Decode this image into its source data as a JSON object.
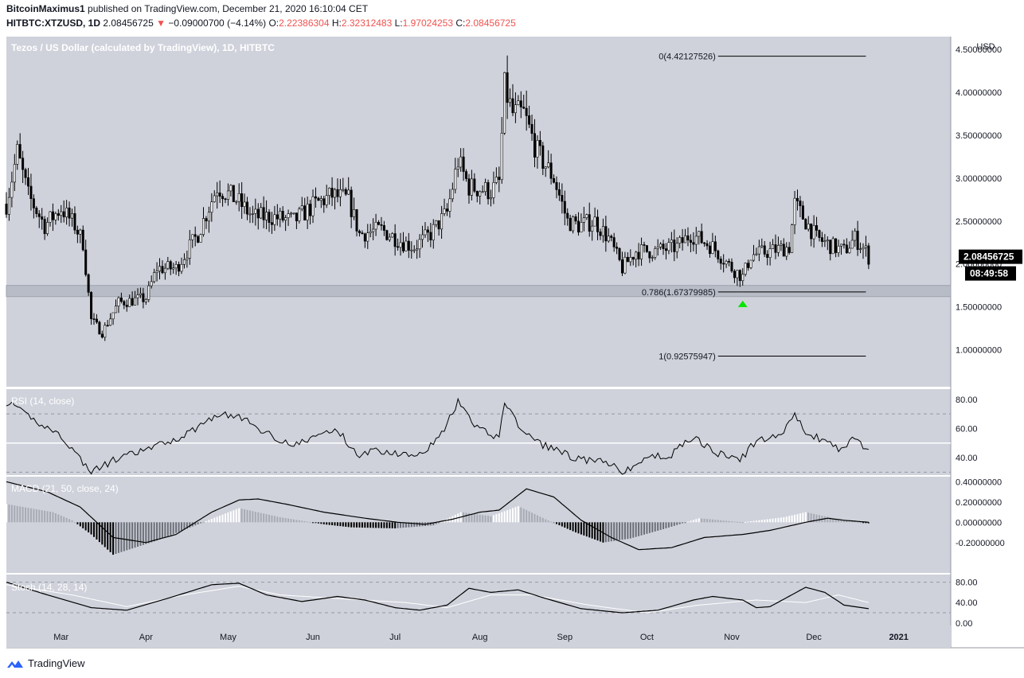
{
  "header": {
    "author": "BitcoinMaximus1",
    "published": "published on TradingView.com, December 21, 2020 16:10:04 CET",
    "symbol": "HITBTC:XTZUSD, 1D",
    "last": "2.08456725",
    "arrow": "▼",
    "change": "−0.09000700 (−4.14%)",
    "o_label": "O:",
    "o": "2.22386304",
    "h_label": "H:",
    "h": "2.32312483",
    "l_label": "L:",
    "l": "1.97024253",
    "c_label": "C:",
    "c": "2.08456725"
  },
  "footer": {
    "brand": "TradingView"
  },
  "colors": {
    "bg": "#cfd2db",
    "accent": "#ef5350",
    "green": "#00e600",
    "gold": "#f0b90b"
  },
  "chart_data": [
    {
      "type": "candlestick",
      "title": "Tezos / US Dollar (calculated by TradingView), 1D, HITBTC",
      "ylabel": "USD",
      "ylim": [
        0.56,
        4.65
      ],
      "yticks": [
        "1.00000000",
        "1.50000000",
        "2.00000000",
        "2.50000000",
        "3.00000000",
        "3.50000000",
        "4.00000000",
        "4.50000000"
      ],
      "xlabels": [
        "Mar",
        "Apr",
        "May",
        "Jun",
        "Jul",
        "Aug",
        "Sep",
        "Oct",
        "Nov",
        "Dec",
        "2021"
      ],
      "xlabel_dates": [
        "2020-03-01",
        "2020-04-01",
        "2020-05-01",
        "2020-06-01",
        "2020-07-01",
        "2020-08-01",
        "2020-09-01",
        "2020-10-01",
        "2020-11-01",
        "2020-12-01",
        "2021-01-01"
      ],
      "xlim": [
        "2020-02-10",
        "2021-01-20"
      ],
      "price_label": "2.08456725",
      "countdown": "08:49:58",
      "anchors": [
        [
          "2020-02-10",
          2.7
        ],
        [
          "2020-02-14",
          3.3
        ],
        [
          "2020-02-18",
          2.8
        ],
        [
          "2020-02-24",
          2.45
        ],
        [
          "2020-03-01",
          2.65
        ],
        [
          "2020-03-06",
          2.45
        ],
        [
          "2020-03-09",
          2.25
        ],
        [
          "2020-03-12",
          1.35
        ],
        [
          "2020-03-16",
          1.2
        ],
        [
          "2020-03-22",
          1.55
        ],
        [
          "2020-04-01",
          1.6
        ],
        [
          "2020-04-05",
          1.95
        ],
        [
          "2020-04-12",
          1.95
        ],
        [
          "2020-04-20",
          2.35
        ],
        [
          "2020-04-27",
          2.9
        ],
        [
          "2020-05-04",
          2.75
        ],
        [
          "2020-05-10",
          2.55
        ],
        [
          "2020-05-17",
          2.55
        ],
        [
          "2020-05-25",
          2.5
        ],
        [
          "2020-06-02",
          2.7
        ],
        [
          "2020-06-08",
          2.8
        ],
        [
          "2020-06-14",
          2.75
        ],
        [
          "2020-06-18",
          2.35
        ],
        [
          "2020-06-26",
          2.4
        ],
        [
          "2020-07-04",
          2.25
        ],
        [
          "2020-07-08",
          2.2
        ],
        [
          "2020-07-14",
          2.35
        ],
        [
          "2020-07-20",
          2.6
        ],
        [
          "2020-07-24",
          3.2
        ],
        [
          "2020-07-28",
          2.9
        ],
        [
          "2020-08-05",
          2.85
        ],
        [
          "2020-08-08",
          2.95
        ],
        [
          "2020-08-10",
          4.05
        ],
        [
          "2020-08-13",
          3.75
        ],
        [
          "2020-08-17",
          3.75
        ],
        [
          "2020-08-22",
          3.3
        ],
        [
          "2020-08-28",
          3.0
        ],
        [
          "2020-09-02",
          2.5
        ],
        [
          "2020-09-06",
          2.45
        ],
        [
          "2020-09-12",
          2.5
        ],
        [
          "2020-09-17",
          2.3
        ],
        [
          "2020-09-22",
          1.95
        ],
        [
          "2020-09-27",
          2.15
        ],
        [
          "2020-10-04",
          2.15
        ],
        [
          "2020-10-12",
          2.2
        ],
        [
          "2020-10-17",
          2.35
        ],
        [
          "2020-10-25",
          2.2
        ],
        [
          "2020-11-01",
          1.95
        ],
        [
          "2020-11-05",
          1.85
        ],
        [
          "2020-11-08",
          2.1
        ],
        [
          "2020-11-15",
          2.15
        ],
        [
          "2020-11-22",
          2.2
        ],
        [
          "2020-11-24",
          2.7
        ],
        [
          "2020-11-27",
          2.55
        ],
        [
          "2020-12-02",
          2.3
        ],
        [
          "2020-12-08",
          2.2
        ],
        [
          "2020-12-12",
          2.15
        ],
        [
          "2020-12-16",
          2.3
        ],
        [
          "2020-12-20",
          2.15
        ],
        [
          "2020-12-21",
          2.08
        ]
      ],
      "fib_levels": [
        {
          "label": "0(4.42127526)",
          "value": 4.42127526
        },
        {
          "label": "0.786(1.67379985)",
          "value": 1.67379985
        },
        {
          "label": "1(0.92575947)",
          "value": 0.92575947
        }
      ],
      "fib_start": "2020-10-27",
      "fib_end": "2020-12-20",
      "support_zone": [
        1.62,
        1.75
      ],
      "marker": {
        "date": "2020-11-05",
        "value": 1.6,
        "shape": "triangle-up",
        "color": "#00e600"
      }
    },
    {
      "type": "line",
      "title": "RSI (14, close)",
      "ylim": [
        28,
        87
      ],
      "yticks": [
        "80.00",
        "60.00",
        "40.00"
      ],
      "levels": [
        70,
        50,
        30
      ],
      "anchors": [
        [
          "2020-02-10",
          78
        ],
        [
          "2020-02-20",
          66
        ],
        [
          "2020-03-01",
          55
        ],
        [
          "2020-03-12",
          30
        ],
        [
          "2020-03-20",
          38
        ],
        [
          "2020-04-05",
          48
        ],
        [
          "2020-04-15",
          55
        ],
        [
          "2020-04-27",
          70
        ],
        [
          "2020-05-05",
          68
        ],
        [
          "2020-05-15",
          57
        ],
        [
          "2020-05-25",
          48
        ],
        [
          "2020-06-05",
          57
        ],
        [
          "2020-06-10",
          59
        ],
        [
          "2020-06-17",
          42
        ],
        [
          "2020-06-25",
          45
        ],
        [
          "2020-07-05",
          42
        ],
        [
          "2020-07-12",
          45
        ],
        [
          "2020-07-18",
          56
        ],
        [
          "2020-07-24",
          78
        ],
        [
          "2020-07-30",
          62
        ],
        [
          "2020-08-05",
          55
        ],
        [
          "2020-08-08",
          55
        ],
        [
          "2020-08-10",
          79
        ],
        [
          "2020-08-15",
          62
        ],
        [
          "2020-08-22",
          50
        ],
        [
          "2020-08-30",
          45
        ],
        [
          "2020-09-05",
          39
        ],
        [
          "2020-09-15",
          37
        ],
        [
          "2020-09-23",
          30
        ],
        [
          "2020-10-01",
          40
        ],
        [
          "2020-10-10",
          42
        ],
        [
          "2020-10-18",
          55
        ],
        [
          "2020-10-25",
          44
        ],
        [
          "2020-11-04",
          38
        ],
        [
          "2020-11-10",
          52
        ],
        [
          "2020-11-18",
          54
        ],
        [
          "2020-11-24",
          70
        ],
        [
          "2020-11-28",
          56
        ],
        [
          "2020-12-05",
          52
        ],
        [
          "2020-12-10",
          45
        ],
        [
          "2020-12-16",
          54
        ],
        [
          "2020-12-21",
          44
        ]
      ]
    },
    {
      "type": "line+histogram",
      "title": "MACD (21, 50, close, 24)",
      "ylim": [
        -0.5,
        0.45
      ],
      "yticks": [
        "0.40000000",
        "0.20000000",
        "0.00000000",
        "-0.20000000"
      ],
      "anchors": [
        [
          "2020-02-10",
          0.4
        ],
        [
          "2020-02-25",
          0.3
        ],
        [
          "2020-03-08",
          0.15
        ],
        [
          "2020-03-20",
          -0.15
        ],
        [
          "2020-04-01",
          -0.2
        ],
        [
          "2020-04-12",
          -0.12
        ],
        [
          "2020-04-25",
          0.1
        ],
        [
          "2020-05-05",
          0.22
        ],
        [
          "2020-05-12",
          0.23
        ],
        [
          "2020-05-22",
          0.18
        ],
        [
          "2020-06-05",
          0.1
        ],
        [
          "2020-06-20",
          0.04
        ],
        [
          "2020-07-02",
          0.0
        ],
        [
          "2020-07-12",
          -0.02
        ],
        [
          "2020-07-22",
          0.03
        ],
        [
          "2020-08-01",
          0.1
        ],
        [
          "2020-08-08",
          0.12
        ],
        [
          "2020-08-18",
          0.33
        ],
        [
          "2020-08-28",
          0.25
        ],
        [
          "2020-09-07",
          0.02
        ],
        [
          "2020-09-18",
          -0.15
        ],
        [
          "2020-09-28",
          -0.27
        ],
        [
          "2020-10-10",
          -0.25
        ],
        [
          "2020-10-22",
          -0.15
        ],
        [
          "2020-11-05",
          -0.12
        ],
        [
          "2020-11-15",
          -0.08
        ],
        [
          "2020-11-28",
          0.0
        ],
        [
          "2020-12-06",
          0.04
        ],
        [
          "2020-12-12",
          0.02
        ],
        [
          "2020-12-21",
          0.0
        ]
      ],
      "hist_anchors": [
        [
          "2020-02-10",
          0.18
        ],
        [
          "2020-02-27",
          0.1
        ],
        [
          "2020-03-05",
          0.02
        ],
        [
          "2020-03-12",
          -0.12
        ],
        [
          "2020-03-20",
          -0.32
        ],
        [
          "2020-04-05",
          -0.18
        ],
        [
          "2020-04-20",
          -0.02
        ],
        [
          "2020-05-05",
          0.14
        ],
        [
          "2020-05-20",
          0.05
        ],
        [
          "2020-06-05",
          -0.02
        ],
        [
          "2020-06-15",
          -0.05
        ],
        [
          "2020-07-01",
          -0.06
        ],
        [
          "2020-07-15",
          -0.03
        ],
        [
          "2020-07-25",
          0.1
        ],
        [
          "2020-08-05",
          0.06
        ],
        [
          "2020-08-15",
          0.16
        ],
        [
          "2020-08-25",
          0.03
        ],
        [
          "2020-09-05",
          -0.1
        ],
        [
          "2020-09-15",
          -0.2
        ],
        [
          "2020-09-25",
          -0.16
        ],
        [
          "2020-10-08",
          -0.06
        ],
        [
          "2020-10-20",
          0.04
        ],
        [
          "2020-11-05",
          0.0
        ],
        [
          "2020-11-20",
          0.05
        ],
        [
          "2020-11-28",
          0.1
        ],
        [
          "2020-12-10",
          0.03
        ],
        [
          "2020-12-21",
          -0.01
        ]
      ]
    },
    {
      "type": "line",
      "title": "Stoch (14, 28, 14)",
      "ylim": [
        -5,
        95
      ],
      "yticks": [
        "80.00",
        "40.00",
        "0.00"
      ],
      "levels": [
        80,
        20
      ],
      "k_anchors": [
        [
          "2020-02-10",
          80
        ],
        [
          "2020-02-25",
          55
        ],
        [
          "2020-03-12",
          30
        ],
        [
          "2020-03-25",
          25
        ],
        [
          "2020-04-10",
          50
        ],
        [
          "2020-04-25",
          75
        ],
        [
          "2020-05-05",
          78
        ],
        [
          "2020-05-15",
          55
        ],
        [
          "2020-05-28",
          42
        ],
        [
          "2020-06-10",
          52
        ],
        [
          "2020-06-20",
          45
        ],
        [
          "2020-07-01",
          30
        ],
        [
          "2020-07-10",
          25
        ],
        [
          "2020-07-20",
          35
        ],
        [
          "2020-07-28",
          68
        ],
        [
          "2020-08-05",
          60
        ],
        [
          "2020-08-15",
          65
        ],
        [
          "2020-08-25",
          48
        ],
        [
          "2020-09-07",
          28
        ],
        [
          "2020-09-22",
          20
        ],
        [
          "2020-10-05",
          25
        ],
        [
          "2020-10-18",
          45
        ],
        [
          "2020-10-25",
          52
        ],
        [
          "2020-11-05",
          45
        ],
        [
          "2020-11-10",
          30
        ],
        [
          "2020-11-15",
          32
        ],
        [
          "2020-11-28",
          70
        ],
        [
          "2020-12-05",
          60
        ],
        [
          "2020-12-12",
          35
        ],
        [
          "2020-12-21",
          28
        ]
      ],
      "d_anchors": [
        [
          "2020-02-10",
          75
        ],
        [
          "2020-03-05",
          55
        ],
        [
          "2020-03-25",
          32
        ],
        [
          "2020-04-15",
          55
        ],
        [
          "2020-05-05",
          72
        ],
        [
          "2020-05-20",
          55
        ],
        [
          "2020-06-10",
          48
        ],
        [
          "2020-07-05",
          40
        ],
        [
          "2020-07-20",
          30
        ],
        [
          "2020-08-05",
          55
        ],
        [
          "2020-08-20",
          55
        ],
        [
          "2020-09-10",
          35
        ],
        [
          "2020-10-01",
          20
        ],
        [
          "2020-10-20",
          35
        ],
        [
          "2020-11-10",
          45
        ],
        [
          "2020-11-28",
          40
        ],
        [
          "2020-12-10",
          55
        ],
        [
          "2020-12-21",
          40
        ]
      ]
    }
  ]
}
